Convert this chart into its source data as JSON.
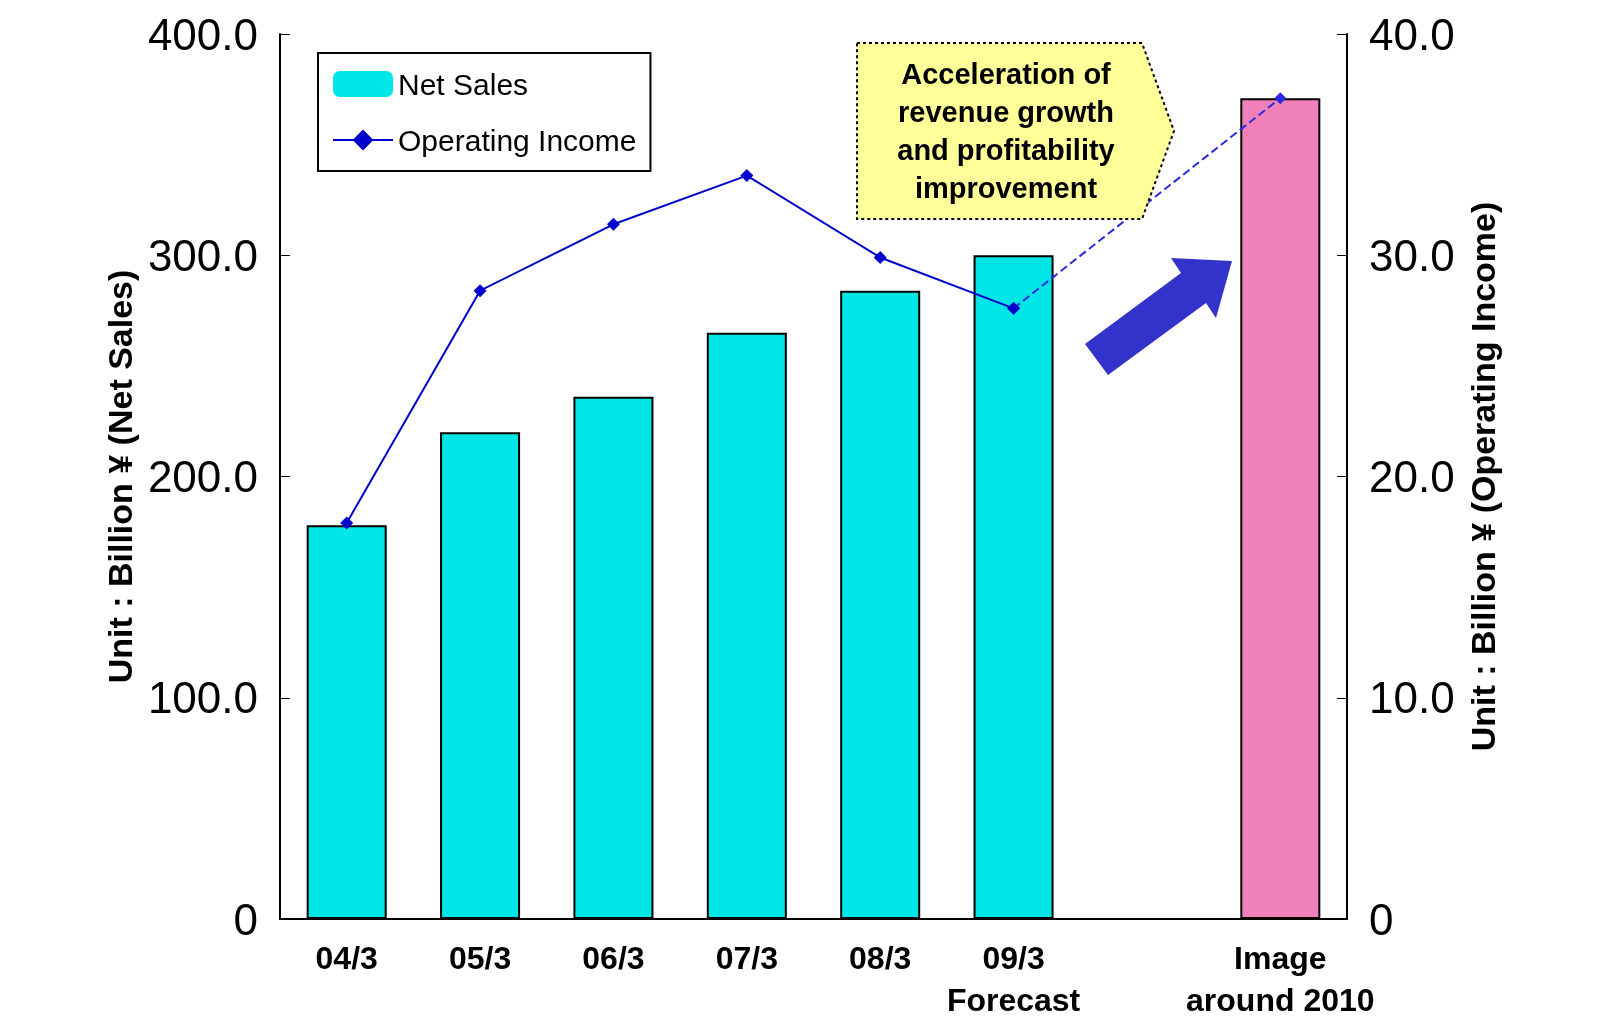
{
  "chart_data": {
    "type": "bar",
    "categories": [
      "04/3",
      "05/3",
      "06/3",
      "07/3",
      "08/3",
      "09/3\nForecast",
      null,
      "Image\naround 2010"
    ],
    "ylabel": "Unit : Billion ¥ (Net Sales)",
    "y2label": "Unit : Billion ¥ (Operating Income)",
    "ylim": [
      0,
      400
    ],
    "yticks": [
      0,
      {
        "value": 100,
        "label": "100.0"
      },
      {
        "value": 200,
        "label": "200.0"
      },
      {
        "value": 300,
        "label": "300.0"
      },
      {
        "value": 400,
        "label": "400.0"
      }
    ],
    "y2lim": [
      0,
      40
    ],
    "y2ticks": [
      0,
      {
        "value": 10,
        "label": "10.0"
      },
      {
        "value": 20,
        "label": "20.0"
      },
      {
        "value": 30,
        "label": "30.0"
      },
      {
        "value": 40,
        "label": "40.0"
      }
    ],
    "series": [
      {
        "name": "Net Sales",
        "colors": [
          "#00e5e5",
          "#00e5e5",
          "#00e5e5",
          "#00e5e5",
          "#00e5e5",
          "#00e5e5",
          null,
          "#f080b8"
        ],
        "values": [
          178,
          220,
          236,
          265,
          284,
          300,
          null,
          371
        ]
      },
      {
        "name": "Operating Income",
        "type": "line",
        "axis": "y2",
        "color": "#0000cc",
        "marker": "diamond",
        "line_style": "solid",
        "values": [
          17.9,
          28.4,
          31.4,
          33.6,
          29.9,
          27.6,
          null,
          null
        ]
      },
      {
        "type": "line",
        "axis": "y2",
        "color": "#2a2ae0",
        "marker": "diamond",
        "line_style": "dashed",
        "values": [
          null,
          null,
          null,
          null,
          null,
          27.6,
          null,
          37.1
        ]
      }
    ],
    "annotations": [
      "Acceleration of\nrevenue growth\nand profitability\nimprovement"
    ],
    "grid": false,
    "legend": "top left"
  }
}
